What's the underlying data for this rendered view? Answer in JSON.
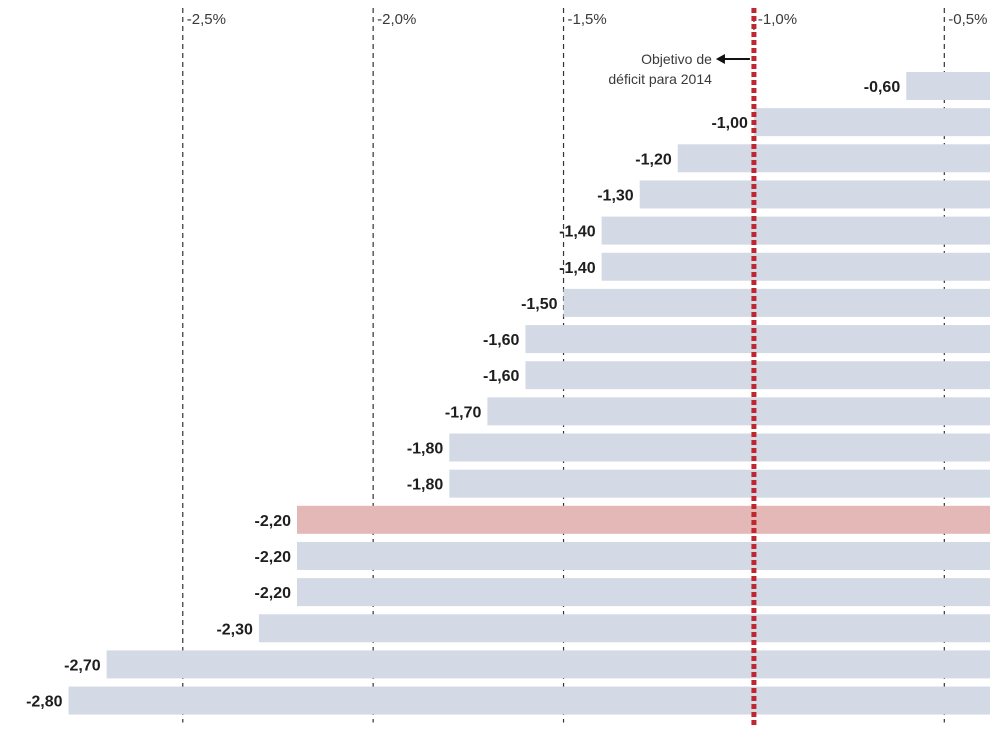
{
  "chart_data": {
    "type": "bar",
    "orientation": "horizontal",
    "title": "",
    "xlabel": "",
    "ylabel": "",
    "xlim": [
      -2.98,
      -0.38
    ],
    "x_ticks": [
      -2.5,
      -2.0,
      -1.5,
      -1.0,
      -0.5
    ],
    "x_tick_labels": [
      "-2,5%",
      "-2,0%",
      "-1,5%",
      "-1,0%",
      "-0,5%"
    ],
    "grid": "vertical dashed",
    "values": [
      -0.6,
      -1.0,
      -1.2,
      -1.3,
      -1.4,
      -1.4,
      -1.5,
      -1.6,
      -1.6,
      -1.7,
      -1.8,
      -1.8,
      -2.2,
      -2.2,
      -2.2,
      -2.3,
      -2.7,
      -2.8
    ],
    "value_labels": [
      "-0,60",
      "-1,00",
      "-1,20",
      "-1,30",
      "-1,40",
      "-1,40",
      "-1,50",
      "-1,60",
      "-1,60",
      "-1,70",
      "-1,80",
      "-1,80",
      "-2,20",
      "-2,20",
      "-2,20",
      "-2,30",
      "-2,70",
      "-2,80"
    ],
    "highlight_index": 12,
    "colors": {
      "bar": "#d3dae5",
      "highlight": "#e3b8b6",
      "target_line": "#c0262d",
      "grid": "#333333"
    },
    "reference_line": {
      "value": -1.0,
      "annotation_line1": "Objetivo de",
      "annotation_line2": "déficit para 2014"
    }
  }
}
